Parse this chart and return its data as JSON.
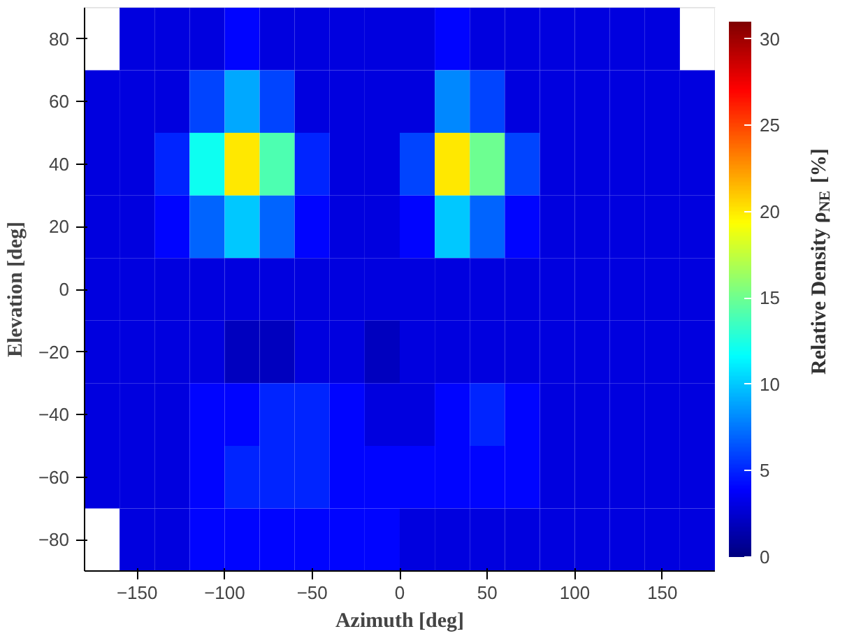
{
  "chart_data": {
    "type": "heatmap",
    "xlabel": "Azimuth [deg]",
    "ylabel": "Elevation [deg]",
    "clabel": "Relative Density ρ$_{NE}$ [%]",
    "x": [
      -170,
      -150,
      -130,
      -110,
      -90,
      -70,
      -50,
      -30,
      -10,
      10,
      30,
      50,
      70,
      90,
      110,
      130,
      150,
      170
    ],
    "y": [
      80,
      60,
      40,
      20,
      0,
      -20,
      -40,
      -60,
      -80
    ],
    "cells": [
      [
        null,
        3,
        3,
        3,
        4,
        3,
        3,
        3,
        3,
        3,
        4,
        3,
        3,
        3,
        3,
        3,
        3,
        null
      ],
      [
        3,
        3,
        3,
        6,
        9,
        6,
        3,
        3,
        3,
        3,
        8,
        6,
        3,
        3,
        3,
        3,
        3,
        3
      ],
      [
        3,
        3,
        5,
        12,
        20,
        14,
        5,
        3,
        3,
        6,
        20,
        15,
        6,
        3,
        3,
        3,
        3,
        3
      ],
      [
        3,
        3,
        4,
        7,
        10,
        7,
        4,
        3,
        3,
        4,
        10,
        7,
        4,
        3,
        3,
        3,
        3,
        3
      ],
      [
        3,
        3,
        3,
        3,
        3,
        3,
        3,
        3,
        3,
        3,
        3,
        3,
        3,
        3,
        3,
        3,
        3,
        3
      ],
      [
        3,
        3,
        3,
        3,
        2,
        2,
        3,
        3,
        2,
        3,
        3,
        3,
        3,
        3,
        3,
        3,
        3,
        3
      ],
      [
        3,
        3,
        3,
        4,
        4,
        5,
        5,
        4,
        3,
        3,
        4,
        5,
        4,
        3,
        3,
        3,
        3,
        3
      ],
      [
        3,
        3,
        3,
        4,
        5,
        5,
        5,
        4,
        4,
        4,
        4,
        4,
        4,
        3,
        3,
        3,
        3,
        3
      ],
      [
        null,
        3,
        3,
        4,
        4,
        4,
        4,
        4,
        4,
        3,
        3,
        3,
        3,
        3,
        3,
        3,
        3,
        3
      ]
    ],
    "xlim": [
      -180,
      180
    ],
    "ylim": [
      -90,
      90
    ],
    "xticks": [
      -150,
      -100,
      -50,
      0,
      50,
      100,
      150
    ],
    "yticks": [
      -80,
      -60,
      -40,
      -20,
      0,
      20,
      40,
      60,
      80
    ],
    "clim": [
      0,
      31
    ],
    "cticks": [
      0,
      5,
      10,
      15,
      20,
      25,
      30
    ],
    "grid": false
  }
}
